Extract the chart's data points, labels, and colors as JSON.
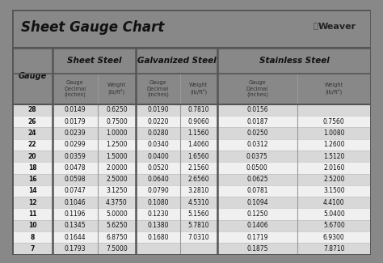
{
  "title": "Sheet Gauge Chart",
  "gauges": [
    28,
    26,
    24,
    22,
    20,
    18,
    16,
    14,
    12,
    11,
    10,
    8,
    7
  ],
  "sheet_steel": {
    "label": "Sheet Steel",
    "decimal": [
      "0.0149",
      "0.0179",
      "0.0239",
      "0.0299",
      "0.0359",
      "0.0478",
      "0.0598",
      "0.0747",
      "0.1046",
      "0.1196",
      "0.1345",
      "0.1644",
      "0.1793"
    ],
    "weight": [
      "0.6250",
      "0.7500",
      "1.0000",
      "1.2500",
      "1.5000",
      "2.0000",
      "2.5000",
      "3.1250",
      "4.3750",
      "5.0000",
      "5.6250",
      "6.8750",
      "7.5000"
    ]
  },
  "galvanized_steel": {
    "label": "Galvanized Steel",
    "decimal": [
      "0.0190",
      "0.0220",
      "0.0280",
      "0.0340",
      "0.0400",
      "0.0520",
      "0.0640",
      "0.0790",
      "0.1080",
      "0.1230",
      "0.1380",
      "0.1680",
      ""
    ],
    "weight": [
      "0.7810",
      "0.9060",
      "1.1560",
      "1.4060",
      "1.6560",
      "2.1560",
      "2.6560",
      "3.2810",
      "4.5310",
      "5.1560",
      "5.7810",
      "7.0310",
      ""
    ]
  },
  "stainless_steel": {
    "label": "Stainless Steel",
    "decimal": [
      "0.0156",
      "0.0187",
      "0.0250",
      "0.0312",
      "0.0375",
      "0.0500",
      "0.0625",
      "0.0781",
      "0.1094",
      "0.1250",
      "0.1406",
      "0.1719",
      "0.1875"
    ],
    "weight": [
      "",
      "0.7560",
      "1.0080",
      "1.2600",
      "1.5120",
      "2.0160",
      "2.5200",
      "3.1500",
      "4.4100",
      "5.0400",
      "5.6700",
      "6.9300",
      "7.8710"
    ]
  },
  "outer_bg": "#888888",
  "inner_bg": "#ffffff",
  "row_shaded": "#d8d8d8",
  "row_white": "#f0f0f0",
  "header_bg": "#ffffff",
  "border_dark": "#555555",
  "border_light": "#999999"
}
